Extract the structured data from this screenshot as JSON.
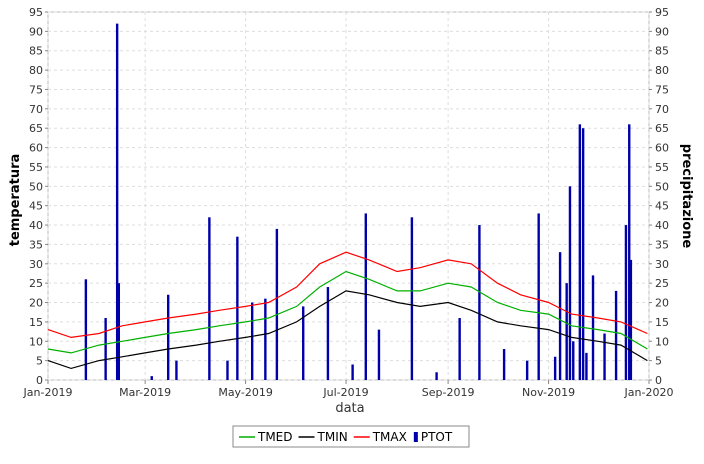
{
  "chart_data": {
    "type": "line",
    "xlabel": "data",
    "ylabel_left": "temperatura",
    "ylabel_right": "precipitazione",
    "xlim": [
      "2019-01-01",
      "2020-01-01"
    ],
    "ylim": [
      0,
      95
    ],
    "yticks": [
      0,
      5,
      10,
      15,
      20,
      25,
      30,
      35,
      40,
      45,
      50,
      55,
      60,
      65,
      70,
      75,
      80,
      85,
      90,
      95
    ],
    "xticks": [
      {
        "label": "Jan-2019",
        "date": "2019-01-01"
      },
      {
        "label": "Mar-2019",
        "date": "2019-03-01"
      },
      {
        "label": "May-2019",
        "date": "2019-05-01"
      },
      {
        "label": "Jul-2019",
        "date": "2019-07-01"
      },
      {
        "label": "Sep-2019",
        "date": "2019-09-01"
      },
      {
        "label": "Nov-2019",
        "date": "2019-11-01"
      },
      {
        "label": "Jan-2020",
        "date": "2020-01-01"
      }
    ],
    "grid": true,
    "legend_position": "bottom",
    "colors": {
      "TMED": "#00b000",
      "TMIN": "#000000",
      "TMAX": "#ff0000",
      "PTOT": "#0000aa"
    },
    "series": [
      {
        "name": "TMAX",
        "type": "line",
        "x": [
          "2019-01-01",
          "2019-01-15",
          "2019-02-01",
          "2019-02-15",
          "2019-03-01",
          "2019-03-15",
          "2019-04-01",
          "2019-04-15",
          "2019-05-01",
          "2019-05-15",
          "2019-06-01",
          "2019-06-15",
          "2019-07-01",
          "2019-07-15",
          "2019-08-01",
          "2019-08-15",
          "2019-09-01",
          "2019-09-15",
          "2019-10-01",
          "2019-10-15",
          "2019-11-01",
          "2019-11-15",
          "2019-12-01",
          "2019-12-15",
          "2019-12-31"
        ],
        "values": [
          13,
          11,
          12,
          14,
          15,
          16,
          17,
          18,
          19,
          20,
          24,
          30,
          33,
          31,
          28,
          29,
          31,
          30,
          25,
          22,
          20,
          17,
          16,
          15,
          12
        ]
      },
      {
        "name": "TMED",
        "type": "line",
        "x": [
          "2019-01-01",
          "2019-01-15",
          "2019-02-01",
          "2019-02-15",
          "2019-03-01",
          "2019-03-15",
          "2019-04-01",
          "2019-04-15",
          "2019-05-01",
          "2019-05-15",
          "2019-06-01",
          "2019-06-15",
          "2019-07-01",
          "2019-07-15",
          "2019-08-01",
          "2019-08-15",
          "2019-09-01",
          "2019-09-15",
          "2019-10-01",
          "2019-10-15",
          "2019-11-01",
          "2019-11-15",
          "2019-12-01",
          "2019-12-15",
          "2019-12-31"
        ],
        "values": [
          8,
          7,
          9,
          10,
          11,
          12,
          13,
          14,
          15,
          16,
          19,
          24,
          28,
          26,
          23,
          23,
          25,
          24,
          20,
          18,
          17,
          14,
          13,
          12,
          8
        ]
      },
      {
        "name": "TMIN",
        "type": "line",
        "x": [
          "2019-01-01",
          "2019-01-15",
          "2019-02-01",
          "2019-02-15",
          "2019-03-01",
          "2019-03-15",
          "2019-04-01",
          "2019-04-15",
          "2019-05-01",
          "2019-05-15",
          "2019-06-01",
          "2019-06-15",
          "2019-07-01",
          "2019-07-15",
          "2019-08-01",
          "2019-08-15",
          "2019-09-01",
          "2019-09-15",
          "2019-10-01",
          "2019-10-15",
          "2019-11-01",
          "2019-11-15",
          "2019-12-01",
          "2019-12-15",
          "2019-12-31"
        ],
        "values": [
          5,
          3,
          5,
          6,
          7,
          8,
          9,
          10,
          11,
          12,
          15,
          19,
          23,
          22,
          20,
          19,
          20,
          18,
          15,
          14,
          13,
          11,
          10,
          9,
          5
        ]
      },
      {
        "name": "PTOT",
        "type": "bar",
        "x": [
          "2019-01-24",
          "2019-02-05",
          "2019-02-12",
          "2019-02-13",
          "2019-03-05",
          "2019-03-15",
          "2019-03-20",
          "2019-04-09",
          "2019-04-20",
          "2019-04-26",
          "2019-05-05",
          "2019-05-13",
          "2019-05-20",
          "2019-06-05",
          "2019-06-20",
          "2019-07-05",
          "2019-07-13",
          "2019-07-21",
          "2019-08-10",
          "2019-08-25",
          "2019-09-08",
          "2019-09-20",
          "2019-10-05",
          "2019-10-19",
          "2019-10-26",
          "2019-11-05",
          "2019-11-08",
          "2019-11-12",
          "2019-11-14",
          "2019-11-16",
          "2019-11-20",
          "2019-11-22",
          "2019-11-24",
          "2019-11-28",
          "2019-12-05",
          "2019-12-12",
          "2019-12-18",
          "2019-12-20",
          "2019-12-21"
        ],
        "values": [
          26,
          16,
          92,
          25,
          1,
          22,
          5,
          42,
          5,
          37,
          20,
          21,
          39,
          19,
          24,
          4,
          43,
          13,
          42,
          2,
          16,
          40,
          8,
          5,
          43,
          6,
          33,
          25,
          50,
          10,
          66,
          65,
          7,
          27,
          12,
          23,
          40,
          66,
          31
        ]
      }
    ],
    "legend": [
      "TMED",
      "TMIN",
      "TMAX",
      "PTOT"
    ]
  }
}
